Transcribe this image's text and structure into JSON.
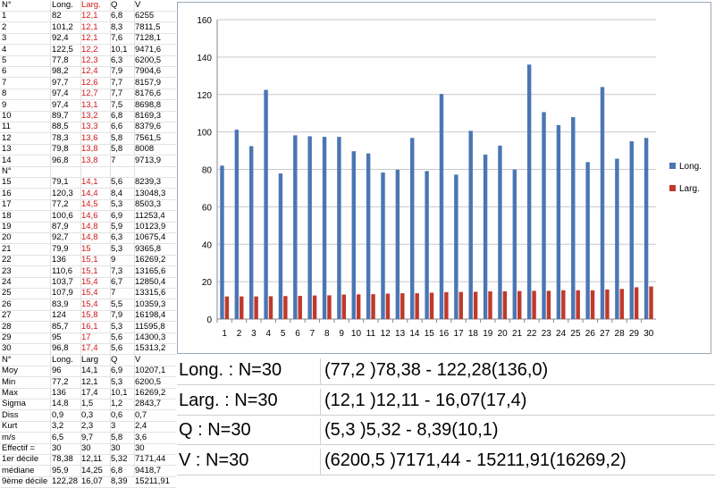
{
  "table": {
    "header": [
      "N°",
      "Long.",
      "Larg.",
      "Q",
      "V"
    ],
    "rows": [
      [
        "1",
        "82",
        "12,1",
        "6,8",
        "6255"
      ],
      [
        "2",
        "101,2",
        "12,1",
        "8,3",
        "7811,5"
      ],
      [
        "3",
        "92,4",
        "12,1",
        "7,6",
        "7128,1"
      ],
      [
        "4",
        "122,5",
        "12,2",
        "10,1",
        "9471,6"
      ],
      [
        "5",
        "77,8",
        "12,3",
        "6,3",
        "6200,5"
      ],
      [
        "6",
        "98,2",
        "12,4",
        "7,9",
        "7904,6"
      ],
      [
        "7",
        "97,7",
        "12,6",
        "7,7",
        "8157,9"
      ],
      [
        "8",
        "97,4",
        "12,7",
        "7,7",
        "8176,6"
      ],
      [
        "9",
        "97,4",
        "13,1",
        "7,5",
        "8698,8"
      ],
      [
        "10",
        "89,7",
        "13,2",
        "6,8",
        "8169,3"
      ],
      [
        "11",
        "88,5",
        "13,3",
        "6,6",
        "8379,6"
      ],
      [
        "12",
        "78,3",
        "13,6",
        "5,8",
        "7561,5"
      ],
      [
        "13",
        "79,8",
        "13,8",
        "5,8",
        "8008"
      ],
      [
        "14",
        "96,8",
        "13,8",
        "7",
        "9713,9"
      ],
      [
        "N°",
        "",
        "",
        "",
        ""
      ],
      [
        "15",
        "79,1",
        "14,1",
        "5,6",
        "8239,3"
      ],
      [
        "16",
        "120,3",
        "14,4",
        "8,4",
        "13048,3"
      ],
      [
        "17",
        "77,2",
        "14,5",
        "5,3",
        "8503,3"
      ],
      [
        "18",
        "100,6",
        "14,6",
        "6,9",
        "11253,4"
      ],
      [
        "19",
        "87,9",
        "14,8",
        "5,9",
        "10123,9"
      ],
      [
        "20",
        "92,7",
        "14,8",
        "6,3",
        "10675,4"
      ],
      [
        "21",
        "79,9",
        "15",
        "5,3",
        "9365,8"
      ],
      [
        "22",
        "136",
        "15,1",
        "9",
        "16269,2"
      ],
      [
        "23",
        "110,6",
        "15,1",
        "7,3",
        "13165,6"
      ],
      [
        "24",
        "103,7",
        "15,4",
        "6,7",
        "12850,4"
      ],
      [
        "25",
        "107,9",
        "15,4",
        "7",
        "13315,6"
      ],
      [
        "26",
        "83,9",
        "15,4",
        "5,5",
        "10359,3"
      ],
      [
        "27",
        "124",
        "15,8",
        "7,9",
        "16198,4"
      ],
      [
        "28",
        "85,7",
        "16,1",
        "5,3",
        "11595,8"
      ],
      [
        "29",
        "95",
        "17",
        "5,6",
        "14300,3"
      ],
      [
        "30",
        "96,8",
        "17,4",
        "5,6",
        "15313,2"
      ],
      [
        "N°",
        "Long.",
        "Larg",
        "Q",
        "V"
      ],
      [
        "Moy",
        "96",
        "14,1",
        "6,9",
        "10207,1"
      ],
      [
        "Min",
        "77,2",
        "12,1",
        "5,3",
        "6200,5"
      ],
      [
        "Max",
        "136",
        "17,4",
        "10,1",
        "16269,2"
      ],
      [
        "Sigma",
        "14,8",
        "1,5",
        "1,2",
        "2843,7"
      ],
      [
        "Diss",
        "0,9",
        "0,3",
        "0,6",
        "0,7"
      ],
      [
        "Kurt",
        "3,2",
        "2,3",
        "3",
        "2,4"
      ],
      [
        "m/s",
        "6,5",
        "9,7",
        "5,8",
        "3,6"
      ],
      [
        "Effectif =",
        "30",
        "30",
        "30",
        "30"
      ],
      [
        "1er décile",
        "78,38",
        "12,11",
        "5,32",
        "7171,44"
      ],
      [
        "médiane",
        "95,9",
        "14,25",
        "6,8",
        "9418,7"
      ],
      [
        "9ème décile",
        "122,28",
        "16,07",
        "8,39",
        "15211,91"
      ]
    ]
  },
  "chart_data": {
    "type": "bar",
    "categories": [
      "1",
      "2",
      "3",
      "4",
      "5",
      "6",
      "7",
      "8",
      "9",
      "10",
      "11",
      "12",
      "13",
      "14",
      "15",
      "16",
      "17",
      "18",
      "19",
      "20",
      "21",
      "22",
      "23",
      "24",
      "25",
      "26",
      "27",
      "28",
      "29",
      "30"
    ],
    "series": [
      {
        "name": "Long.",
        "color": "#4a76b4",
        "values": [
          82,
          101.2,
          92.4,
          122.5,
          77.8,
          98.2,
          97.7,
          97.4,
          97.4,
          89.7,
          88.5,
          78.3,
          79.8,
          96.8,
          79.1,
          120.3,
          77.2,
          100.6,
          87.9,
          92.7,
          79.9,
          136,
          110.6,
          103.7,
          107.9,
          83.9,
          124,
          85.7,
          95,
          96.8
        ]
      },
      {
        "name": "Larg.",
        "color": "#c0392b",
        "values": [
          12.1,
          12.1,
          12.1,
          12.2,
          12.3,
          12.4,
          12.6,
          12.7,
          13.1,
          13.2,
          13.3,
          13.6,
          13.8,
          13.8,
          14.1,
          14.4,
          14.5,
          14.6,
          14.8,
          14.8,
          15,
          15.1,
          15.1,
          15.4,
          15.4,
          15.4,
          15.8,
          16.1,
          17,
          17.4
        ]
      }
    ],
    "ylim": [
      0,
      160
    ],
    "yticks": [
      "0",
      "20",
      "40",
      "60",
      "80",
      "100",
      "120",
      "140",
      "160"
    ],
    "grid": true,
    "legend": "right"
  },
  "stats": [
    {
      "label": "Long. : N=30",
      "value": "(77,2 )78,38 - 122,28(136,0)"
    },
    {
      "label": "Larg. : N=30",
      "value": "(12,1 )12,11 - 16,07(17,4)"
    },
    {
      "label": "Q : N=30",
      "value": "(5,3 )5,32 - 8,39(10,1)"
    },
    {
      "label": "V : N=30",
      "value": "(6200,5 )7171,44 - 15211,91(16269,2)"
    }
  ]
}
